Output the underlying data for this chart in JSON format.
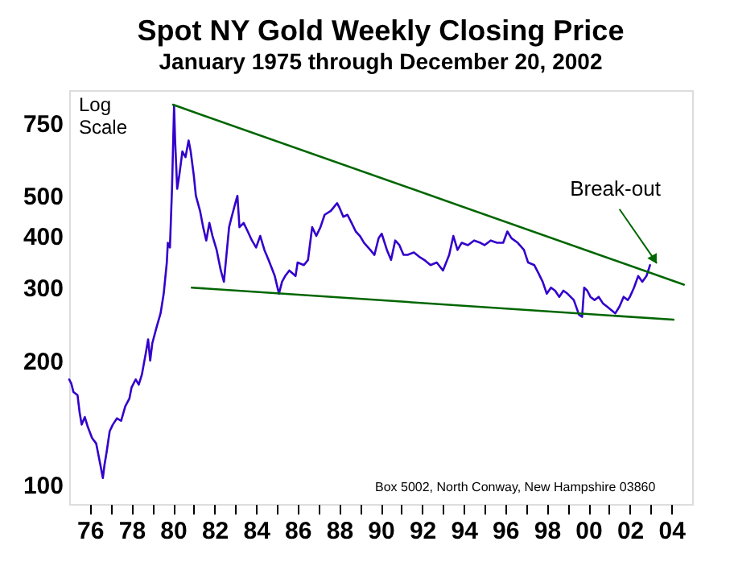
{
  "chart_data": {
    "type": "line",
    "title": "Spot NY Gold Weekly Closing Price",
    "subtitle": "January 1975 through December 20, 2002",
    "log": true,
    "marker": "none",
    "line_style": "solid",
    "xlim": [
      1975,
      2005
    ],
    "ylim": [
      90,
      900
    ],
    "yticks": [
      100,
      200,
      300,
      400,
      500,
      750
    ],
    "xticks": [
      {
        "value": 1976,
        "label": "76"
      },
      {
        "value": 1977,
        "label": null
      },
      {
        "value": 1978,
        "label": "78"
      },
      {
        "value": 1979,
        "label": null
      },
      {
        "value": 1980,
        "label": "80"
      },
      {
        "value": 1981,
        "label": null
      },
      {
        "value": 1982,
        "label": "82"
      },
      {
        "value": 1983,
        "label": null
      },
      {
        "value": 1984,
        "label": "84"
      },
      {
        "value": 1985,
        "label": null
      },
      {
        "value": 1986,
        "label": "86"
      },
      {
        "value": 1987,
        "label": null
      },
      {
        "value": 1988,
        "label": "88"
      },
      {
        "value": 1989,
        "label": null
      },
      {
        "value": 1990,
        "label": "90"
      },
      {
        "value": 1991,
        "label": null
      },
      {
        "value": 1992,
        "label": "92"
      },
      {
        "value": 1993,
        "label": null
      },
      {
        "value": 1994,
        "label": "94"
      },
      {
        "value": 1995,
        "label": null
      },
      {
        "value": 1996,
        "label": "96"
      },
      {
        "value": 1997,
        "label": null
      },
      {
        "value": 1998,
        "label": "98"
      },
      {
        "value": 1999,
        "label": null
      },
      {
        "value": 2000,
        "label": "00"
      },
      {
        "value": 2001,
        "label": null
      },
      {
        "value": 2002,
        "label": "02"
      },
      {
        "value": 2003,
        "label": null
      },
      {
        "value": 2004,
        "label": "04"
      }
    ],
    "series": [
      {
        "color": "#3300cc",
        "x": [
          1975.0,
          1975.1,
          1975.2,
          1975.4,
          1975.5,
          1975.6,
          1975.75,
          1975.9,
          1976.1,
          1976.3,
          1976.5,
          1976.62,
          1976.7,
          1976.8,
          1976.95,
          1977.1,
          1977.3,
          1977.5,
          1977.7,
          1977.9,
          1978.0,
          1978.2,
          1978.35,
          1978.5,
          1978.7,
          1978.8,
          1978.9,
          1979.0,
          1979.2,
          1979.4,
          1979.55,
          1979.7,
          1979.75,
          1979.85,
          1979.95,
          1980.05,
          1980.1,
          1980.2,
          1980.3,
          1980.45,
          1980.6,
          1980.75,
          1980.85,
          1981.0,
          1981.1,
          1981.3,
          1981.45,
          1981.6,
          1981.75,
          1981.9,
          1982.1,
          1982.3,
          1982.45,
          1982.55,
          1982.7,
          1982.8,
          1983.0,
          1983.1,
          1983.2,
          1983.4,
          1983.6,
          1983.8,
          1984.0,
          1984.2,
          1984.4,
          1984.6,
          1984.9,
          1985.1,
          1985.25,
          1985.4,
          1985.6,
          1985.9,
          1986.0,
          1986.3,
          1986.5,
          1986.7,
          1986.9,
          1987.1,
          1987.3,
          1987.6,
          1987.9,
          1988.0,
          1988.2,
          1988.4,
          1988.6,
          1988.8,
          1989.0,
          1989.2,
          1989.5,
          1989.7,
          1989.9,
          1990.05,
          1990.3,
          1990.5,
          1990.7,
          1990.9,
          1991.1,
          1991.3,
          1991.6,
          1991.9,
          1992.1,
          1992.4,
          1992.7,
          1993.0,
          1993.3,
          1993.5,
          1993.7,
          1993.9,
          1994.2,
          1994.5,
          1994.8,
          1995.0,
          1995.3,
          1995.6,
          1995.9,
          1996.1,
          1996.3,
          1996.6,
          1996.9,
          1997.1,
          1997.4,
          1997.6,
          1997.8,
          1998.0,
          1998.2,
          1998.4,
          1998.6,
          1998.8,
          1999.0,
          1999.3,
          1999.55,
          1999.7,
          1999.8,
          1999.95,
          2000.1,
          2000.3,
          2000.5,
          2000.7,
          2000.9,
          2001.1,
          2001.3,
          2001.5,
          2001.7,
          2001.9,
          2002.0,
          2002.2,
          2002.4,
          2002.6,
          2002.8,
          2002.97
        ],
        "values": [
          180,
          176,
          168,
          165,
          150,
          140,
          146,
          138,
          130,
          126,
          112,
          104,
          112,
          120,
          135,
          140,
          145,
          143,
          155,
          162,
          172,
          180,
          175,
          185,
          210,
          225,
          200,
          220,
          240,
          260,
          290,
          345,
          385,
          375,
          520,
          825,
          680,
          520,
          560,
          640,
          620,
          680,
          640,
          560,
          500,
          460,
          420,
          390,
          430,
          400,
          370,
          330,
          310,
          350,
          420,
          440,
          480,
          500,
          420,
          430,
          410,
          390,
          375,
          400,
          370,
          350,
          320,
          290,
          310,
          320,
          330,
          320,
          345,
          340,
          350,
          420,
          400,
          420,
          450,
          460,
          480,
          470,
          445,
          450,
          430,
          410,
          400,
          385,
          370,
          360,
          395,
          405,
          370,
          350,
          390,
          380,
          360,
          360,
          365,
          355,
          350,
          340,
          345,
          330,
          360,
          400,
          370,
          385,
          380,
          390,
          385,
          380,
          390,
          385,
          385,
          410,
          395,
          385,
          370,
          345,
          340,
          325,
          310,
          290,
          300,
          295,
          285,
          295,
          290,
          280,
          258,
          255,
          300,
          295,
          285,
          280,
          285,
          275,
          270,
          265,
          260,
          270,
          285,
          280,
          285,
          300,
          320,
          310,
          320,
          340
        ]
      },
      {
        "color": "#006600",
        "x": [
          1980.0,
          2004.6
        ],
        "values": [
          830,
          305
        ]
      },
      {
        "color": "#006600",
        "x": [
          1980.9,
          2004.1
        ],
        "values": [
          300,
          251
        ]
      }
    ],
    "annotations": [
      "Log Scale",
      {
        "text": "Break-out",
        "x": 2003.3,
        "y": 337
      },
      "Box 5002, North Conway, New Hampshire 03860"
    ]
  }
}
